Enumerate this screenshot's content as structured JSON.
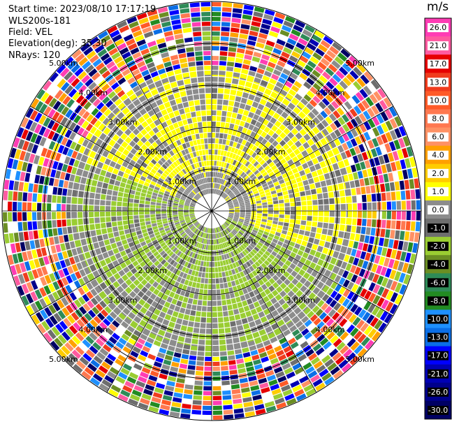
{
  "header": {
    "start_time": "Start time: 2023/08/10 17:17:19",
    "instrument": "WLS200s-181",
    "field": "Field: VEL",
    "elevation": "Elevation(deg): 35.30",
    "nrays": "NRays: 120"
  },
  "chart_data": {
    "type": "heatmap",
    "projection": "polar PPI scan",
    "field": "VEL",
    "units": "m/s",
    "nrays": 120,
    "elevation_deg": 35.3,
    "range_max_km": 5.0,
    "range_rings_km": [
      1,
      2,
      3,
      4,
      5
    ],
    "range_ring_labels": [
      "1.00km",
      "2.00km",
      "3.00km",
      "4.00km",
      "5.00km"
    ],
    "spokes_deg": [
      0,
      30,
      60,
      90,
      120,
      150,
      180,
      210,
      240,
      270,
      300,
      330
    ],
    "colorbar": {
      "title": "m/s",
      "tick_labels": [
        "26.0",
        "21.0",
        "17.0",
        "13.0",
        "10.0",
        "8.0",
        "6.0",
        "4.0",
        "2.0",
        "1.0",
        "0.0",
        "-1.0",
        "-2.0",
        "-4.0",
        "-6.0",
        "-8.0",
        "-10.0",
        "-13.0",
        "-17.0",
        "-21.0",
        "-26.0",
        "-30.0"
      ],
      "bins": [
        {
          "from": 26,
          "to": 30,
          "color": "#ff3cb4"
        },
        {
          "from": 21,
          "to": 26,
          "color": "#ff5aa0"
        },
        {
          "from": 17,
          "to": 21,
          "color": "#e60000"
        },
        {
          "from": 13,
          "to": 17,
          "color": "#f03c1e"
        },
        {
          "from": 10,
          "to": 13,
          "color": "#ff5a28"
        },
        {
          "from": 8,
          "to": 10,
          "color": "#ff7850"
        },
        {
          "from": 6,
          "to": 8,
          "color": "#ff9164"
        },
        {
          "from": 4,
          "to": 6,
          "color": "#ffa000"
        },
        {
          "from": 2,
          "to": 4,
          "color": "#ffcc00"
        },
        {
          "from": 1,
          "to": 2,
          "color": "#ffff00"
        },
        {
          "from": 0,
          "to": 1,
          "color": "#8c8c8c"
        },
        {
          "from": -1,
          "to": 0,
          "color": "#6e6e6e"
        },
        {
          "from": -2,
          "to": -1,
          "color": "#9acd32"
        },
        {
          "from": -4,
          "to": -2,
          "color": "#6b8e23"
        },
        {
          "from": -6,
          "to": -4,
          "color": "#2e8b57"
        },
        {
          "from": -8,
          "to": -6,
          "color": "#228b22"
        },
        {
          "from": -10,
          "to": -8,
          "color": "#1e90ff"
        },
        {
          "from": -13,
          "to": -10,
          "color": "#0a6ee6"
        },
        {
          "from": -17,
          "to": -13,
          "color": "#0000ff"
        },
        {
          "from": -21,
          "to": -17,
          "color": "#0000b4"
        },
        {
          "from": -26,
          "to": -21,
          "color": "#00008b"
        },
        {
          "from": -30,
          "to": -26,
          "color": "#000064"
        }
      ]
    },
    "pattern_summary": [
      {
        "range_km": [
          0,
          3.5
        ],
        "azimuth_deg": [
          290,
          110
        ],
        "dominant": "1.0 to 2.0 and 0.0 to 1.0"
      },
      {
        "range_km": [
          0,
          3.5
        ],
        "azimuth_deg": [
          110,
          290
        ],
        "dominant": "-2.0 to -1.0 and 0.0 to 1.0"
      },
      {
        "range_km": [
          3.5,
          5.0
        ],
        "azimuth_deg": [
          0,
          360
        ],
        "dominant": "noise spanning all bins"
      }
    ]
  }
}
